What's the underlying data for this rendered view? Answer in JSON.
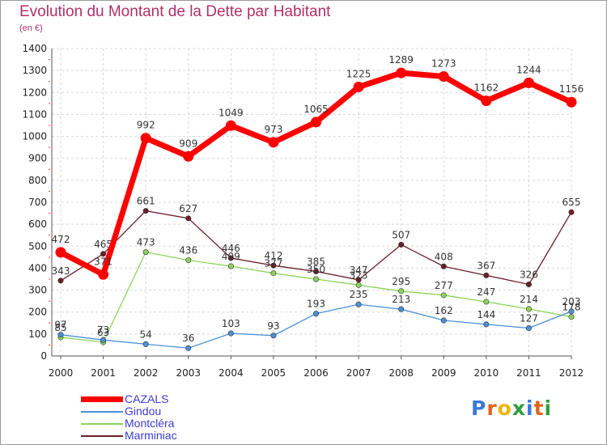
{
  "header": {
    "title": "Evolution du Montant de la Dette par Habitant",
    "unit": "(en €)"
  },
  "logo": {
    "text": "Proxiti",
    "letter_colors": [
      "#3a78d8",
      "#e0651e",
      "#f0b400",
      "#2e9e3e",
      "#3a78d8",
      "#e0651e",
      "#2e9e3e"
    ]
  },
  "chart_data": {
    "type": "line",
    "x": [
      "2000",
      "2001",
      "2002",
      "2003",
      "2004",
      "2005",
      "2006",
      "2007",
      "2008",
      "2009",
      "2010",
      "2011",
      "2012"
    ],
    "ylim": [
      0,
      1400
    ],
    "yticks": [
      0,
      100,
      200,
      300,
      400,
      500,
      600,
      700,
      800,
      900,
      1000,
      1100,
      1200,
      1300,
      1400
    ],
    "grid": true,
    "legend_position": "bottom-left",
    "series": [
      {
        "name": "Marminiac",
        "color": "#6b1e28",
        "values": [
          343,
          465,
          661,
          627,
          446,
          412,
          385,
          347,
          507,
          408,
          367,
          326,
          655
        ]
      },
      {
        "name": "Montcléra",
        "color": "#8cd45a",
        "values": [
          85,
          63,
          473,
          436,
          409,
          377,
          350,
          323,
          295,
          277,
          247,
          214,
          178
        ]
      },
      {
        "name": "Gindou",
        "color": "#4a90d9",
        "values": [
          97,
          73,
          54,
          36,
          103,
          93,
          193,
          235,
          213,
          162,
          144,
          127,
          203
        ]
      },
      {
        "name": "CAZALS",
        "color": "#ff0000",
        "values": [
          472,
          371,
          992,
          909,
          1049,
          973,
          1065,
          1225,
          1289,
          1273,
          1162,
          1244,
          1156
        ]
      }
    ],
    "legend_order": [
      "CAZALS",
      "Gindou",
      "Montcléra",
      "Marminiac"
    ]
  }
}
